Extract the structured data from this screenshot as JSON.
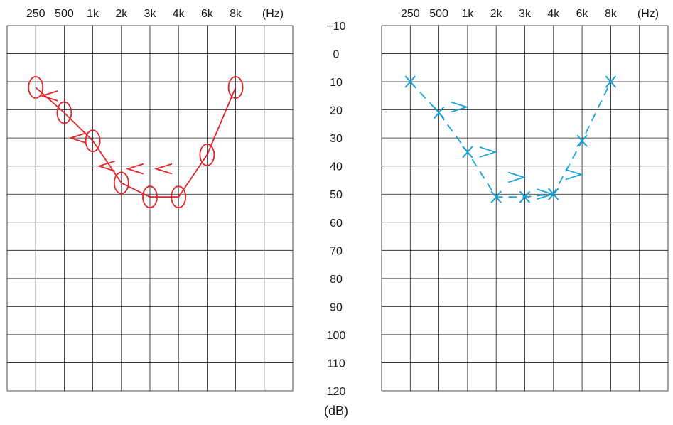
{
  "chart_data": [
    {
      "type": "line",
      "x_tick_labels": [
        "250",
        "500",
        "1k",
        "2k",
        "3k",
        "4k",
        "6k",
        "8k"
      ],
      "x_unit": "(Hz)",
      "y_tick_labels": [
        "−10",
        "0",
        "10",
        "20",
        "30",
        "40",
        "50",
        "60",
        "70",
        "80",
        "90",
        "100",
        "110",
        "120"
      ],
      "y_unit": "(dB)",
      "ylim": [
        -10,
        120
      ],
      "grid": true,
      "y_inverted": true,
      "series": [
        {
          "marker": "circle",
          "line_style": "solid",
          "color": "#e0262a",
          "x": [
            "250",
            "500",
            "1k",
            "2k",
            "3k",
            "4k",
            "6k",
            "8k"
          ],
          "values": [
            12,
            21,
            31,
            46,
            51,
            51,
            36,
            12
          ]
        },
        {
          "marker": "<",
          "line_style": "none",
          "color": "#e0262a",
          "x": [
            "250",
            "500",
            "1k",
            "2k",
            "3k"
          ],
          "values": [
            15,
            30,
            40,
            41,
            41
          ]
        }
      ]
    },
    {
      "type": "line",
      "x_tick_labels": [
        "250",
        "500",
        "1k",
        "2k",
        "3k",
        "4k",
        "6k",
        "8k"
      ],
      "x_unit": "(Hz)",
      "ylim": [
        -10,
        120
      ],
      "grid": true,
      "y_inverted": true,
      "series": [
        {
          "marker": "x",
          "line_style": "dashed",
          "color": "#1aa3d9",
          "x": [
            "250",
            "500",
            "1k",
            "2k",
            "3k",
            "4k",
            "6k",
            "8k"
          ],
          "values": [
            10,
            21,
            35,
            51,
            51,
            50,
            31,
            10
          ]
        },
        {
          "marker": ">",
          "line_style": "none",
          "color": "#1aa3d9",
          "x": [
            "500",
            "1k",
            "2k",
            "3k",
            "4k"
          ],
          "values": [
            19,
            35,
            44,
            50,
            43
          ]
        }
      ]
    }
  ]
}
